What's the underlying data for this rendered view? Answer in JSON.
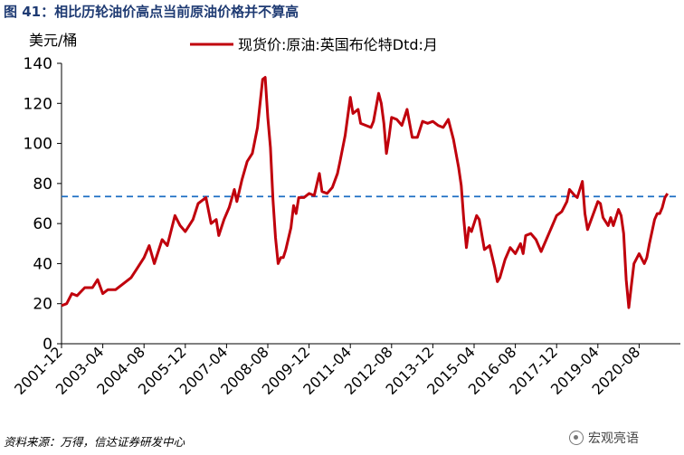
{
  "figure": {
    "title": "图 41：相比历轮油价高点当前原油价格并不算高",
    "source": "资料来源：万得，信达证券研发中心",
    "watermark": "宏观亮语",
    "watermark_icon": "wechat-icon"
  },
  "chart_data": {
    "type": "line",
    "title": "",
    "ylabel": "美元/桶",
    "xlabel": "",
    "ylim": [
      0,
      140
    ],
    "yticks": [
      0,
      20,
      40,
      60,
      80,
      100,
      120,
      140
    ],
    "xlim": [
      "2001-12",
      "2021-12"
    ],
    "xticks": [
      "2001-12",
      "2003-04",
      "2004-08",
      "2005-12",
      "2007-04",
      "2008-08",
      "2009-12",
      "2011-04",
      "2012-08",
      "2013-12",
      "2015-04",
      "2016-08",
      "2017-12",
      "2019-04",
      "2020-08"
    ],
    "grid": false,
    "legend_position": "top-center",
    "reference_line": {
      "value": 73.5,
      "style": "dashed",
      "color": "#1f6fc4"
    },
    "series": [
      {
        "name": "现货价:原油:英国布伦特Dtd:月",
        "color": "#c0000c",
        "points": [
          [
            "2001-12",
            19
          ],
          [
            "2002-02",
            20
          ],
          [
            "2002-04",
            25
          ],
          [
            "2002-06",
            24
          ],
          [
            "2002-09",
            28
          ],
          [
            "2002-12",
            28
          ],
          [
            "2003-02",
            32
          ],
          [
            "2003-04",
            25
          ],
          [
            "2003-06",
            27
          ],
          [
            "2003-09",
            27
          ],
          [
            "2003-12",
            30
          ],
          [
            "2004-03",
            33
          ],
          [
            "2004-05",
            37
          ],
          [
            "2004-08",
            43
          ],
          [
            "2004-10",
            49
          ],
          [
            "2004-12",
            40
          ],
          [
            "2005-03",
            52
          ],
          [
            "2005-05",
            49
          ],
          [
            "2005-08",
            64
          ],
          [
            "2005-10",
            59
          ],
          [
            "2005-12",
            56
          ],
          [
            "2006-03",
            62
          ],
          [
            "2006-05",
            70
          ],
          [
            "2006-08",
            73
          ],
          [
            "2006-10",
            60
          ],
          [
            "2006-12",
            62
          ],
          [
            "2007-01",
            54
          ],
          [
            "2007-03",
            62
          ],
          [
            "2007-05",
            68
          ],
          [
            "2007-07",
            77
          ],
          [
            "2007-08",
            71
          ],
          [
            "2007-10",
            82
          ],
          [
            "2007-12",
            91
          ],
          [
            "2008-02",
            95
          ],
          [
            "2008-04",
            108
          ],
          [
            "2008-06",
            132
          ],
          [
            "2008-07",
            133
          ],
          [
            "2008-08",
            113
          ],
          [
            "2008-09",
            98
          ],
          [
            "2008-10",
            72
          ],
          [
            "2008-11",
            53
          ],
          [
            "2008-12",
            40
          ],
          [
            "2009-01",
            43
          ],
          [
            "2009-02",
            43
          ],
          [
            "2009-03",
            47
          ],
          [
            "2009-05",
            58
          ],
          [
            "2009-06",
            69
          ],
          [
            "2009-07",
            65
          ],
          [
            "2009-08",
            73
          ],
          [
            "2009-10",
            73
          ],
          [
            "2009-12",
            75
          ],
          [
            "2010-02",
            74
          ],
          [
            "2010-04",
            85
          ],
          [
            "2010-05",
            76
          ],
          [
            "2010-07",
            75
          ],
          [
            "2010-09",
            78
          ],
          [
            "2010-11",
            85
          ],
          [
            "2010-12",
            91
          ],
          [
            "2011-02",
            104
          ],
          [
            "2011-04",
            123
          ],
          [
            "2011-05",
            115
          ],
          [
            "2011-07",
            117
          ],
          [
            "2011-08",
            110
          ],
          [
            "2011-10",
            109
          ],
          [
            "2011-12",
            108
          ],
          [
            "2012-01",
            111
          ],
          [
            "2012-03",
            125
          ],
          [
            "2012-04",
            120
          ],
          [
            "2012-05",
            110
          ],
          [
            "2012-06",
            95
          ],
          [
            "2012-07",
            103
          ],
          [
            "2012-08",
            113
          ],
          [
            "2012-10",
            112
          ],
          [
            "2012-12",
            109
          ],
          [
            "2013-02",
            117
          ],
          [
            "2013-04",
            103
          ],
          [
            "2013-06",
            103
          ],
          [
            "2013-08",
            111
          ],
          [
            "2013-10",
            110
          ],
          [
            "2013-12",
            111
          ],
          [
            "2014-02",
            109
          ],
          [
            "2014-04",
            108
          ],
          [
            "2014-06",
            112
          ],
          [
            "2014-08",
            102
          ],
          [
            "2014-10",
            88
          ],
          [
            "2014-11",
            79
          ],
          [
            "2014-12",
            62
          ],
          [
            "2015-01",
            48
          ],
          [
            "2015-02",
            58
          ],
          [
            "2015-03",
            56
          ],
          [
            "2015-05",
            64
          ],
          [
            "2015-06",
            62
          ],
          [
            "2015-08",
            47
          ],
          [
            "2015-10",
            49
          ],
          [
            "2015-12",
            38
          ],
          [
            "2016-01",
            31
          ],
          [
            "2016-02",
            33
          ],
          [
            "2016-04",
            42
          ],
          [
            "2016-06",
            48
          ],
          [
            "2016-08",
            45
          ],
          [
            "2016-10",
            50
          ],
          [
            "2016-11",
            45
          ],
          [
            "2016-12",
            54
          ],
          [
            "2017-02",
            55
          ],
          [
            "2017-04",
            52
          ],
          [
            "2017-06",
            46
          ],
          [
            "2017-08",
            52
          ],
          [
            "2017-10",
            58
          ],
          [
            "2017-12",
            64
          ],
          [
            "2018-02",
            66
          ],
          [
            "2018-04",
            71
          ],
          [
            "2018-05",
            77
          ],
          [
            "2018-07",
            74
          ],
          [
            "2018-08",
            73
          ],
          [
            "2018-10",
            81
          ],
          [
            "2018-11",
            65
          ],
          [
            "2018-12",
            57
          ],
          [
            "2019-02",
            64
          ],
          [
            "2019-04",
            71
          ],
          [
            "2019-05",
            70
          ],
          [
            "2019-06",
            63
          ],
          [
            "2019-08",
            59
          ],
          [
            "2019-09",
            63
          ],
          [
            "2019-10",
            59
          ],
          [
            "2019-12",
            67
          ],
          [
            "2020-01",
            64
          ],
          [
            "2020-02",
            55
          ],
          [
            "2020-03",
            32
          ],
          [
            "2020-04",
            18
          ],
          [
            "2020-05",
            29
          ],
          [
            "2020-06",
            40
          ],
          [
            "2020-08",
            45
          ],
          [
            "2020-10",
            40
          ],
          [
            "2020-11",
            43
          ],
          [
            "2020-12",
            50
          ],
          [
            "2021-02",
            62
          ],
          [
            "2021-03",
            65
          ],
          [
            "2021-04",
            65
          ],
          [
            "2021-05",
            68
          ],
          [
            "2021-06",
            73
          ],
          [
            "2021-07",
            75
          ]
        ]
      }
    ]
  }
}
